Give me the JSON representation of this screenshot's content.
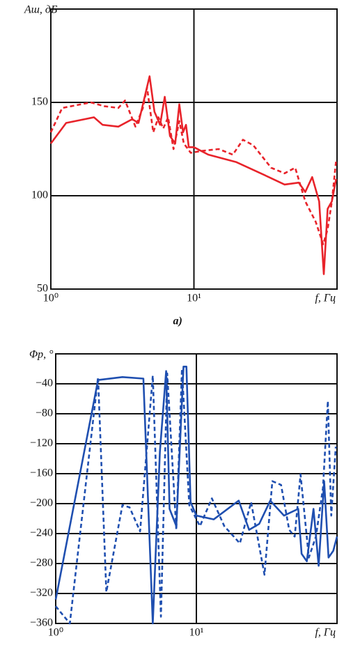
{
  "chart_data": [
    {
      "type": "line",
      "ylabel": "Aш, дБ",
      "xlabel": "f, Гц",
      "caption": "а)",
      "xscale": "log",
      "grid": true,
      "xlim": [
        1,
        100
      ],
      "xticks": [
        {
          "value": 1,
          "label": "10⁰"
        },
        {
          "value": 10,
          "label": "10¹"
        }
      ],
      "ylim": [
        50,
        200
      ],
      "yticks": [
        50,
        100,
        150
      ],
      "series": [
        {
          "color": "#e8232a",
          "line_style": "solid",
          "x": [
            1,
            1.28,
            2.0,
            2.3,
            2.96,
            3.7,
            4.1,
            4.9,
            5.3,
            5.8,
            6.25,
            6.8,
            7.4,
            7.9,
            8.4,
            8.8,
            9.2,
            10,
            12.6,
            19.8,
            29.3,
            43,
            54,
            60,
            67,
            75,
            80.8,
            86,
            92,
            98.5
          ],
          "values": [
            128,
            139,
            142,
            138,
            137,
            141,
            139,
            164,
            145,
            138,
            153,
            132,
            128,
            149,
            134,
            138,
            126,
            126,
            122,
            118,
            112,
            106,
            107,
            102,
            110,
            97,
            58,
            93,
            97,
            109
          ]
        },
        {
          "color": "#e8232a",
          "line_style": "dashed",
          "x": [
            1,
            1.2,
            1.9,
            2.36,
            2.96,
            3.3,
            3.9,
            4.4,
            4.7,
            5.2,
            5.65,
            6.1,
            6.6,
            7.2,
            7.9,
            8.5,
            9.5,
            11.3,
            14.9,
            18.7,
            22,
            26,
            34.6,
            43,
            51,
            60,
            71,
            80,
            86,
            92,
            98.5
          ],
          "values": [
            134,
            147,
            150,
            148,
            147,
            151,
            137,
            147,
            158,
            134,
            142,
            136,
            142,
            125,
            140,
            128,
            123,
            124,
            125,
            122,
            130,
            127,
            115,
            112,
            115,
            97,
            86,
            74,
            82,
            97,
            119
          ]
        }
      ]
    },
    {
      "type": "line",
      "ylabel": "Φp, °",
      "xlabel": "f, Гц",
      "xscale": "log",
      "grid": true,
      "xlim": [
        1,
        100
      ],
      "xticks": [
        {
          "value": 1,
          "label": "10⁰"
        },
        {
          "value": 10,
          "label": "10¹"
        }
      ],
      "ylim": [
        -360,
        0
      ],
      "yticks": [
        {
          "value": -360,
          "label": "−360"
        },
        {
          "value": -320,
          "label": "−320"
        },
        {
          "value": -280,
          "label": "−280"
        },
        {
          "value": -240,
          "label": "−240"
        },
        {
          "value": -200,
          "label": "−200"
        },
        {
          "value": -160,
          "label": "−160"
        },
        {
          "value": -120,
          "label": "−120"
        },
        {
          "value": -80,
          "label": "−80"
        },
        {
          "value": -40,
          "label": "−40"
        }
      ],
      "series": [
        {
          "color": "#1f4fb0",
          "line_style": "solid",
          "x": [
            1,
            2.0,
            2.98,
            4.2,
            4.9,
            5.5,
            6.1,
            6.45,
            7.2,
            8.1,
            8.5,
            9.1,
            10,
            13.3,
            20,
            23.7,
            28,
            33.5,
            42,
            53,
            56,
            61,
            68,
            74,
            81,
            87,
            94,
            100
          ],
          "values": [
            -328,
            -35,
            -31,
            -33,
            -360,
            -131,
            -23,
            -207,
            -230,
            -17,
            -17,
            -198,
            -216,
            -221,
            -196,
            -235,
            -227,
            -196,
            -216,
            -207,
            -267,
            -277,
            -207,
            -283,
            -170,
            -272,
            -263,
            -244
          ]
        },
        {
          "color": "#1f4fb0",
          "line_style": "dashed",
          "x": [
            1,
            1.26,
            2.0,
            2.29,
            2.98,
            3.35,
            3.98,
            4.9,
            5.6,
            6.2,
            7.2,
            7.9,
            8.9,
            10.6,
            12.9,
            15.8,
            20.4,
            24.5,
            30.5,
            34.7,
            40,
            45.7,
            50,
            55,
            63,
            70.8,
            79.4,
            86,
            91,
            98
          ],
          "values": [
            -337,
            -360,
            -31,
            -318,
            -202,
            -205,
            -237,
            -29,
            -351,
            -26,
            -235,
            -20,
            -202,
            -230,
            -193,
            -230,
            -253,
            -198,
            -295,
            -170,
            -175,
            -235,
            -244,
            -161,
            -272,
            -244,
            -179,
            -63,
            -216,
            -124
          ]
        }
      ]
    }
  ]
}
